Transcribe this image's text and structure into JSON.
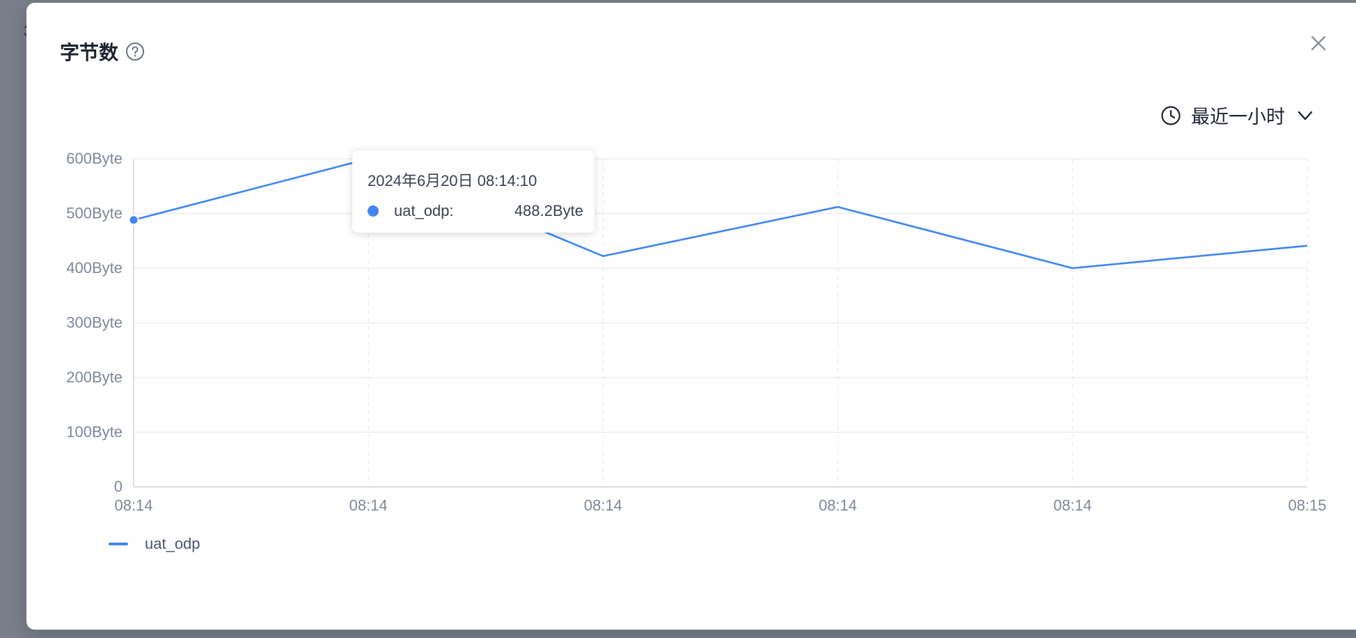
{
  "modal": {
    "title": "字节数",
    "help_icon": "question-circle-icon",
    "close_icon": "close-icon"
  },
  "time_range": {
    "icon": "clock-icon",
    "label": "最近一小时",
    "chevron": "chevron-down-icon"
  },
  "tooltip": {
    "time": "2024年6月20日 08:14:10",
    "series": "uat_odp:",
    "value": "488.2Byte"
  },
  "legend": {
    "label": "uat_odp"
  },
  "colors": {
    "line": "#3f86f0",
    "grid": "#ebedf2",
    "axis_text": "#7e8699"
  },
  "chart_data": {
    "type": "line",
    "x": [
      "08:14",
      "08:14",
      "08:14",
      "08:14",
      "08:14",
      "08:15"
    ],
    "y_tick_labels": [
      "0",
      "100Byte",
      "200Byte",
      "300Byte",
      "400Byte",
      "500Byte",
      "600Byte"
    ],
    "y_ticks": [
      0,
      100,
      200,
      300,
      400,
      500,
      600
    ],
    "ylim": [
      0,
      600
    ],
    "series": [
      {
        "name": "uat_odp",
        "values": [
          488.2,
          600,
          422,
          512,
          400,
          441
        ]
      }
    ],
    "grid": true,
    "legend_position": "bottom-left",
    "highlighted_index": 0
  }
}
